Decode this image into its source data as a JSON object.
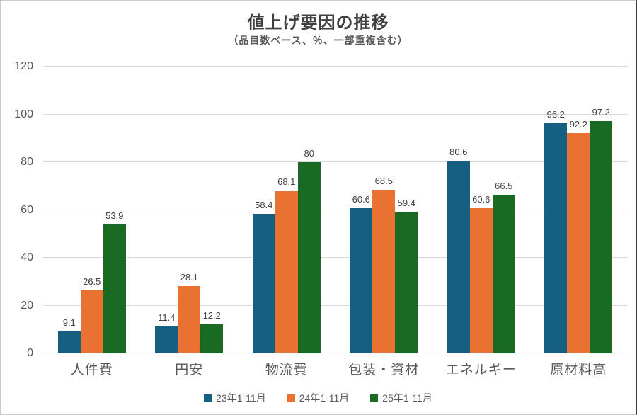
{
  "chart_data": {
    "type": "bar",
    "title": "値上げ要因の推移",
    "subtitle": "（品目数ベース、％、一部重複含む）",
    "categories": [
      "人件費",
      "円安",
      "物流費",
      "包装・資材",
      "エネルギー",
      "原材料高"
    ],
    "series": [
      {
        "name": "23年1-11月",
        "color": "#156082",
        "values": [
          9.1,
          11.4,
          58.4,
          60.6,
          80.6,
          96.2
        ]
      },
      {
        "name": "24年1-11月",
        "color": "#E97132",
        "values": [
          26.5,
          28.1,
          68.1,
          68.5,
          60.6,
          92.2
        ]
      },
      {
        "name": "25年1-11月",
        "color": "#196B24",
        "values": [
          53.9,
          12.2,
          80,
          59.4,
          66.5,
          97.2
        ]
      }
    ],
    "ylabel": "",
    "xlabel": "",
    "ylim": [
      0,
      120
    ],
    "y_ticks": [
      0,
      20,
      40,
      60,
      80,
      100,
      120
    ],
    "grid": true,
    "legend_position": "bottom",
    "data_labels": true,
    "colors": {
      "grid": "#d9d9d9",
      "axis_text": "#595959",
      "label_text": "#404040",
      "title_text": "#404040"
    }
  }
}
